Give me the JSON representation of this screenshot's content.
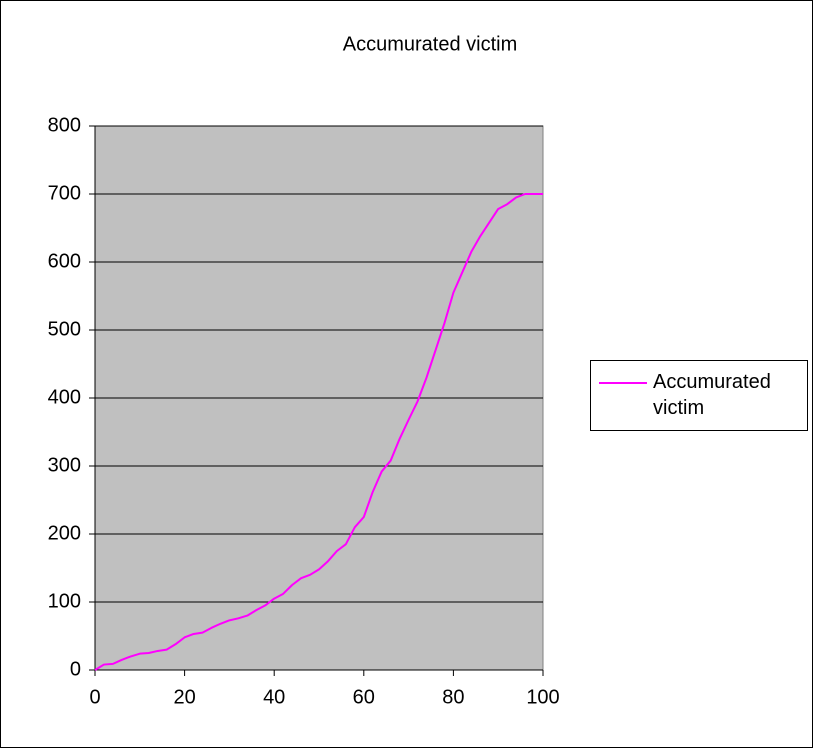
{
  "chart_data": {
    "type": "line",
    "title": "Accumurated victim",
    "x": [
      0,
      2,
      4,
      6,
      8,
      10,
      12,
      14,
      16,
      18,
      20,
      22,
      24,
      26,
      28,
      30,
      32,
      34,
      36,
      38,
      40,
      42,
      44,
      46,
      48,
      50,
      52,
      54,
      56,
      58,
      60,
      62,
      64,
      66,
      68,
      70,
      72,
      74,
      76,
      78,
      80,
      82,
      84,
      86,
      88,
      90,
      92,
      94,
      96,
      98,
      100
    ],
    "series": [
      {
        "name": "Accumurated victim",
        "color": "#ff00ff",
        "values": [
          0,
          8,
          9,
          15,
          20,
          24,
          25,
          28,
          30,
          38,
          48,
          53,
          55,
          62,
          68,
          73,
          76,
          80,
          88,
          95,
          105,
          112,
          125,
          135,
          140,
          148,
          160,
          175,
          185,
          210,
          225,
          262,
          292,
          308,
          340,
          368,
          395,
          430,
          470,
          510,
          555,
          585,
          615,
          638,
          658,
          678,
          685,
          695,
          700,
          700,
          700
        ]
      }
    ],
    "xlim": [
      0,
      100
    ],
    "xticks": [
      0,
      20,
      40,
      60,
      80,
      100
    ],
    "ylim": [
      0,
      800
    ],
    "yticks": [
      0,
      100,
      200,
      300,
      400,
      500,
      600,
      700,
      800
    ],
    "grid": true,
    "legend": "right",
    "plot_background": "#c0c0c0"
  }
}
